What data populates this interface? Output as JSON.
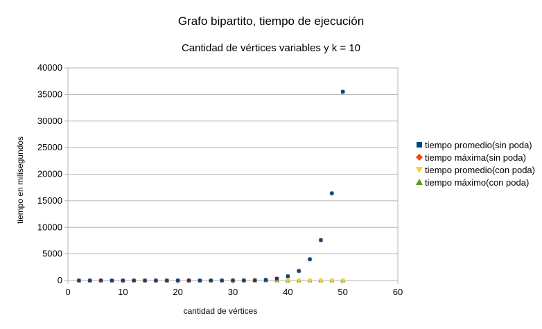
{
  "chart_data": {
    "type": "scatter",
    "title": "Grafo bipartito, tiempo de ejecución",
    "subtitle": "Cantidad de vértices variables y k = 10",
    "xlabel": "cantidad de vértices",
    "ylabel": "tiempo en milisegundos",
    "xlim": [
      0,
      60
    ],
    "ylim": [
      0,
      40000
    ],
    "x_ticks": [
      "0",
      "10",
      "20",
      "30",
      "40",
      "50",
      "60"
    ],
    "y_ticks": [
      "0",
      "5000",
      "10000",
      "15000",
      "20000",
      "25000",
      "30000",
      "35000",
      "40000"
    ],
    "grid": "horizontal",
    "legend_position": "right",
    "series": [
      {
        "name": "tiempo promedio(sin poda)",
        "marker": "square",
        "color": "#004586",
        "x": [
          2,
          4,
          6,
          8,
          10,
          12,
          14,
          16,
          18,
          20,
          22,
          24,
          26,
          28,
          30,
          32,
          34,
          36,
          38,
          40,
          42,
          44,
          46,
          48,
          50
        ],
        "y": [
          0,
          0,
          0,
          0,
          0,
          0,
          0,
          0,
          0,
          0,
          0,
          0,
          0,
          5,
          10,
          20,
          50,
          120,
          350,
          800,
          1800,
          4000,
          7600,
          16400,
          35500
        ]
      },
      {
        "name": "tiempo máxima(sin poda)",
        "marker": "diamond",
        "color": "#ff420e",
        "x": [
          2,
          4,
          6,
          8,
          10,
          12,
          14,
          16,
          18,
          20,
          22,
          24,
          26,
          28,
          30,
          32,
          34,
          36,
          38,
          40,
          42,
          44,
          46,
          48,
          50
        ],
        "y": [
          0,
          0,
          0,
          0,
          0,
          0,
          0,
          0,
          0,
          0,
          0,
          0,
          0,
          5,
          10,
          20,
          50,
          120,
          350,
          800,
          1800,
          4000,
          7600,
          16400,
          35500
        ]
      },
      {
        "name": "tiempo promedio(con poda)",
        "marker": "triangle-down",
        "color": "#ffd320",
        "x": [
          2,
          4,
          6,
          8,
          10,
          12,
          14,
          16,
          18,
          20,
          22,
          24,
          26,
          28,
          30,
          32,
          34,
          36,
          38,
          40,
          42,
          44,
          46,
          48,
          50
        ],
        "y": [
          0,
          0,
          0,
          0,
          0,
          0,
          0,
          0,
          0,
          0,
          0,
          0,
          0,
          0,
          0,
          0,
          0,
          0,
          0,
          0,
          0,
          0,
          0,
          0,
          0
        ]
      },
      {
        "name": "tiempo máximo(con poda)",
        "marker": "triangle-up",
        "color": "#579d1c",
        "x": [
          2,
          4,
          6,
          8,
          10,
          12,
          14,
          16,
          18,
          20,
          22,
          24,
          26,
          28,
          30,
          32,
          34,
          36,
          38,
          40,
          42,
          44,
          46,
          48,
          50
        ],
        "y": [
          0,
          0,
          0,
          0,
          0,
          0,
          0,
          0,
          0,
          0,
          0,
          0,
          0,
          0,
          0,
          0,
          0,
          0,
          0,
          0,
          0,
          0,
          0,
          0,
          0
        ]
      }
    ]
  }
}
